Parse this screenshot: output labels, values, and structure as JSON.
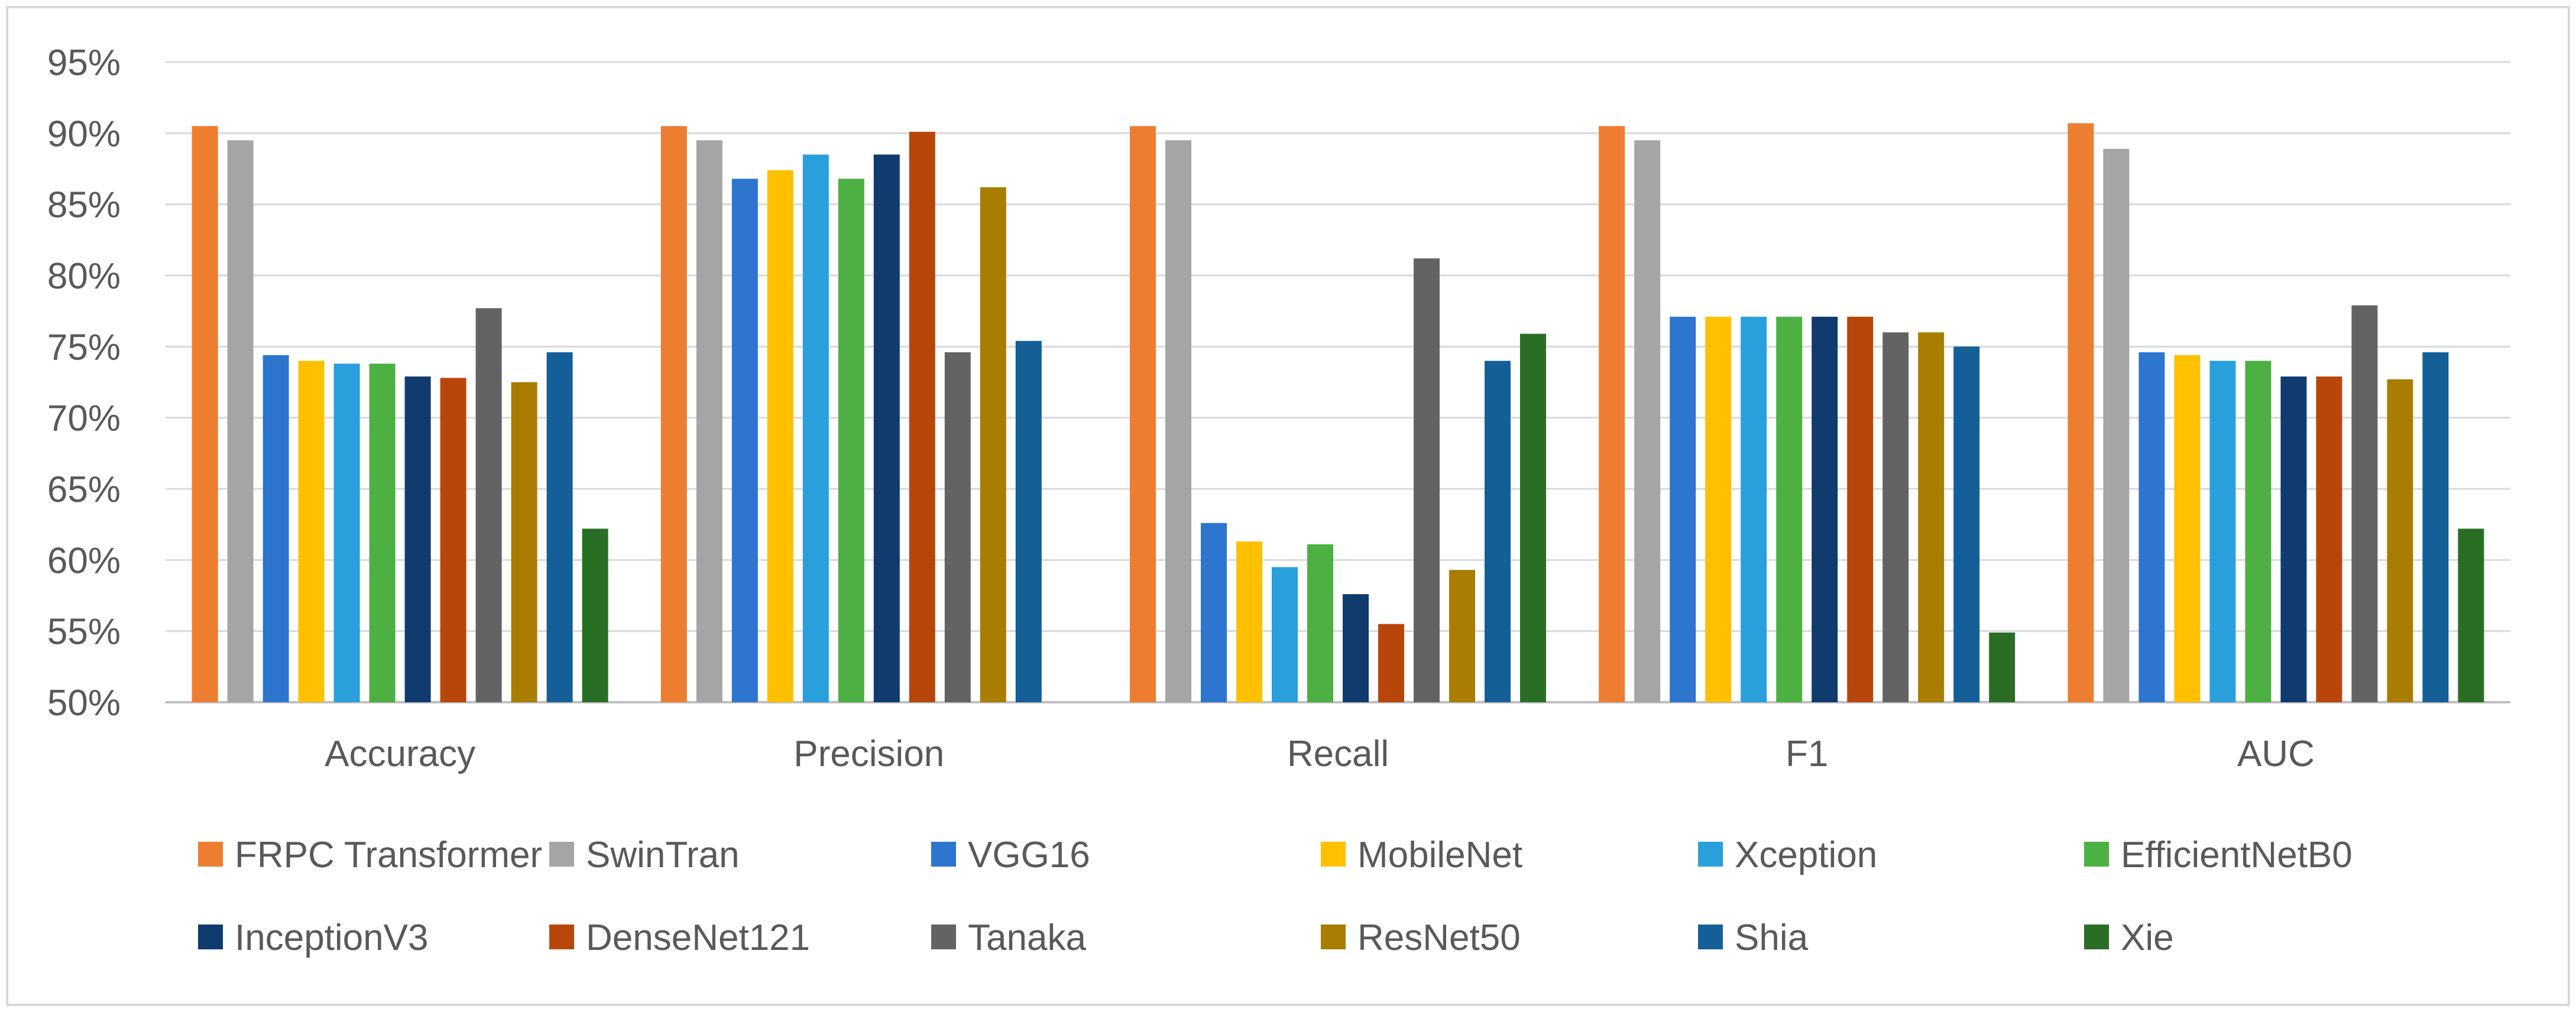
{
  "chart_data": {
    "type": "bar",
    "title": "",
    "xlabel": "",
    "ylabel": "",
    "ylim": [
      50,
      95
    ],
    "yticks": [
      "50%",
      "55%",
      "60%",
      "65%",
      "70%",
      "75%",
      "80%",
      "85%",
      "90%",
      "95%"
    ],
    "grid": true,
    "legend_position": "bottom",
    "categories": [
      "Accuracy",
      "Precision",
      "Recall",
      "F1",
      "AUC"
    ],
    "series": [
      {
        "name": "FRPC Transformer",
        "color": "#ED7D31",
        "values": [
          90.5,
          90.5,
          90.5,
          90.5,
          90.7
        ]
      },
      {
        "name": "SwinTran",
        "color": "#A5A5A5",
        "values": [
          89.5,
          89.5,
          89.5,
          89.5,
          88.9
        ]
      },
      {
        "name": "VGG16",
        "color": "#2E75D0",
        "values": [
          74.4,
          86.8,
          62.6,
          77.1,
          74.6
        ]
      },
      {
        "name": "MobileNet",
        "color": "#FFC000",
        "values": [
          74.0,
          87.4,
          61.3,
          77.1,
          74.4
        ]
      },
      {
        "name": "Xception",
        "color": "#29A0DC",
        "values": [
          73.8,
          88.5,
          59.5,
          77.1,
          74.0
        ]
      },
      {
        "name": "EfficientNetB0",
        "color": "#4CB043",
        "values": [
          73.8,
          86.8,
          61.1,
          77.1,
          74.0
        ]
      },
      {
        "name": "InceptionV3",
        "color": "#0F3B6E",
        "values": [
          72.9,
          88.5,
          57.6,
          77.1,
          72.9
        ]
      },
      {
        "name": "DenseNet121",
        "color": "#B8460B",
        "values": [
          72.8,
          90.1,
          55.5,
          77.1,
          72.9
        ]
      },
      {
        "name": "Tanaka",
        "color": "#636363",
        "values": [
          77.7,
          74.6,
          81.2,
          76.0,
          77.9
        ]
      },
      {
        "name": "ResNet50",
        "color": "#A87D02",
        "values": [
          72.5,
          86.2,
          59.3,
          76.0,
          72.7
        ]
      },
      {
        "name": "Shia",
        "color": "#155F98",
        "values": [
          74.6,
          75.4,
          74.0,
          75.0,
          74.6
        ]
      },
      {
        "name": "Xie",
        "color": "#2A6E26",
        "values": [
          62.2,
          null,
          75.9,
          54.9,
          62.2
        ]
      }
    ]
  }
}
